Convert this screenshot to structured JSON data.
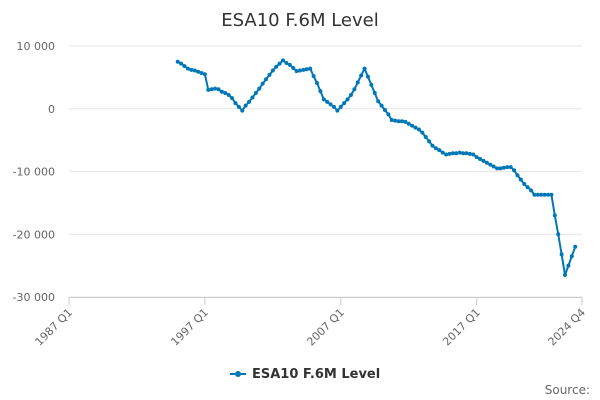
{
  "chart_data": {
    "type": "line",
    "title": "ESA10 F.6M Level",
    "subtitle": "",
    "xlabel": "",
    "ylabel": "",
    "ylim": [
      -30000,
      10000
    ],
    "yticks": [
      10000,
      0,
      -10000,
      -20000,
      -30000
    ],
    "ytick_labels": [
      "10 000",
      "0",
      "-10 000",
      "-20 000",
      "-30 000"
    ],
    "x_range": [
      "1987 Q1",
      "2024 Q4"
    ],
    "xticks": [
      "1987 Q1",
      "1997 Q1",
      "2007 Q1",
      "2017 Q1",
      "2024 Q4"
    ],
    "grid": {
      "horizontal": true,
      "vertical": false
    },
    "legend_position": "bottom-center",
    "series_color": "#0077b6",
    "series": [
      {
        "name": "ESA10 F.6M Level",
        "points": [
          [
            "1995 Q1",
            7500
          ],
          [
            "1995 Q2",
            7200
          ],
          [
            "1995 Q3",
            6800
          ],
          [
            "1995 Q4",
            6400
          ],
          [
            "1996 Q1",
            6200
          ],
          [
            "1996 Q2",
            6100
          ],
          [
            "1996 Q3",
            5900
          ],
          [
            "1996 Q4",
            5700
          ],
          [
            "1997 Q1",
            5500
          ],
          [
            "1997 Q2",
            3000
          ],
          [
            "1997 Q3",
            3100
          ],
          [
            "1997 Q4",
            3200
          ],
          [
            "1998 Q1",
            3100
          ],
          [
            "1998 Q2",
            2700
          ],
          [
            "1998 Q3",
            2500
          ],
          [
            "1998 Q4",
            2200
          ],
          [
            "1999 Q1",
            1700
          ],
          [
            "1999 Q2",
            900
          ],
          [
            "1999 Q3",
            300
          ],
          [
            "1999 Q4",
            -300
          ],
          [
            "2000 Q1",
            500
          ],
          [
            "2000 Q2",
            1100
          ],
          [
            "2000 Q3",
            1800
          ],
          [
            "2000 Q4",
            2500
          ],
          [
            "2001 Q1",
            3200
          ],
          [
            "2001 Q2",
            4000
          ],
          [
            "2001 Q3",
            4700
          ],
          [
            "2001 Q4",
            5400
          ],
          [
            "2002 Q1",
            6100
          ],
          [
            "2002 Q2",
            6700
          ],
          [
            "2002 Q3",
            7200
          ],
          [
            "2002 Q4",
            7700
          ],
          [
            "2003 Q1",
            7300
          ],
          [
            "2003 Q2",
            7000
          ],
          [
            "2003 Q3",
            6500
          ],
          [
            "2003 Q4",
            6000
          ],
          [
            "2004 Q1",
            6100
          ],
          [
            "2004 Q2",
            6200
          ],
          [
            "2004 Q3",
            6300
          ],
          [
            "2004 Q4",
            6400
          ],
          [
            "2005 Q1",
            5200
          ],
          [
            "2005 Q2",
            4100
          ],
          [
            "2005 Q3",
            2800
          ],
          [
            "2005 Q4",
            1500
          ],
          [
            "2006 Q1",
            1100
          ],
          [
            "2006 Q2",
            700
          ],
          [
            "2006 Q3",
            300
          ],
          [
            "2006 Q4",
            -300
          ],
          [
            "2007 Q1",
            300
          ],
          [
            "2007 Q2",
            900
          ],
          [
            "2007 Q3",
            1500
          ],
          [
            "2007 Q4",
            2200
          ],
          [
            "2008 Q1",
            3100
          ],
          [
            "2008 Q2",
            4200
          ],
          [
            "2008 Q3",
            5300
          ],
          [
            "2008 Q4",
            6400
          ],
          [
            "2009 Q1",
            5100
          ],
          [
            "2009 Q2",
            3800
          ],
          [
            "2009 Q3",
            2500
          ],
          [
            "2009 Q4",
            1200
          ],
          [
            "2010 Q1",
            500
          ],
          [
            "2010 Q2",
            -200
          ],
          [
            "2010 Q3",
            -900
          ],
          [
            "2010 Q4",
            -1800
          ],
          [
            "2011 Q1",
            -1900
          ],
          [
            "2011 Q2",
            -2000
          ],
          [
            "2011 Q3",
            -2000
          ],
          [
            "2011 Q4",
            -2100
          ],
          [
            "2012 Q1",
            -2400
          ],
          [
            "2012 Q2",
            -2700
          ],
          [
            "2012 Q3",
            -3000
          ],
          [
            "2012 Q4",
            -3300
          ],
          [
            "2013 Q1",
            -3800
          ],
          [
            "2013 Q2",
            -4500
          ],
          [
            "2013 Q3",
            -5200
          ],
          [
            "2013 Q4",
            -5900
          ],
          [
            "2014 Q1",
            -6300
          ],
          [
            "2014 Q2",
            -6600
          ],
          [
            "2014 Q3",
            -7000
          ],
          [
            "2014 Q4",
            -7300
          ],
          [
            "2015 Q1",
            -7200
          ],
          [
            "2015 Q2",
            -7100
          ],
          [
            "2015 Q3",
            -7100
          ],
          [
            "2015 Q4",
            -7000
          ],
          [
            "2016 Q1",
            -7100
          ],
          [
            "2016 Q2",
            -7100
          ],
          [
            "2016 Q3",
            -7200
          ],
          [
            "2016 Q4",
            -7300
          ],
          [
            "2017 Q1",
            -7700
          ],
          [
            "2017 Q2",
            -8000
          ],
          [
            "2017 Q3",
            -8300
          ],
          [
            "2017 Q4",
            -8600
          ],
          [
            "2018 Q1",
            -8900
          ],
          [
            "2018 Q2",
            -9200
          ],
          [
            "2018 Q3",
            -9500
          ],
          [
            "2018 Q4",
            -9500
          ],
          [
            "2019 Q1",
            -9400
          ],
          [
            "2019 Q2",
            -9300
          ],
          [
            "2019 Q3",
            -9300
          ],
          [
            "2019 Q4",
            -9800
          ],
          [
            "2020 Q1",
            -10600
          ],
          [
            "2020 Q2",
            -11300
          ],
          [
            "2020 Q3",
            -12000
          ],
          [
            "2020 Q4",
            -12500
          ],
          [
            "2021 Q1",
            -13000
          ],
          [
            "2021 Q2",
            -13700
          ],
          [
            "2021 Q3",
            -13700
          ],
          [
            "2021 Q4",
            -13700
          ],
          [
            "2022 Q1",
            -13700
          ],
          [
            "2022 Q2",
            -13700
          ],
          [
            "2022 Q3",
            -13700
          ],
          [
            "2022 Q4",
            -17000
          ],
          [
            "2023 Q1",
            -20000
          ],
          [
            "2023 Q2",
            -23200
          ],
          [
            "2023 Q3",
            -26500
          ],
          [
            "2023 Q4",
            -25000
          ],
          [
            "2024 Q1",
            -23500
          ],
          [
            "2024 Q2",
            -22000
          ]
        ]
      }
    ],
    "legend": {
      "label": "ESA10 F.6M Level"
    },
    "credits": "Source:"
  }
}
